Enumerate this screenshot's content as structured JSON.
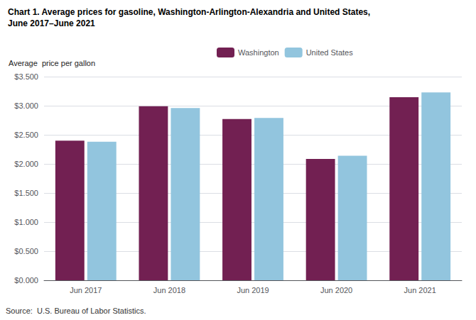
{
  "chart_data": {
    "type": "bar",
    "title": "Chart 1. Average prices for gasoline, Washington-Arlington-Alexandria and United States,",
    "subtitle": "June 2017–June 2021",
    "ylabel": "Average  price per gallon",
    "annotations": [
      "Source:  U.S. Bureau of Labor Statistics."
    ],
    "categories": [
      "Jun 2017",
      "Jun 2018",
      "Jun 2019",
      "Jun 2020",
      "Jun 2021"
    ],
    "series": [
      {
        "name": "Washington",
        "color": "#722052",
        "values": [
          2.4,
          2.99,
          2.77,
          2.085,
          3.145
        ]
      },
      {
        "name": "United States",
        "color": "#92C5DE",
        "values": [
          2.38,
          2.96,
          2.79,
          2.14,
          3.23
        ]
      }
    ],
    "ylim": [
      0,
      3.5
    ],
    "yticks": [
      {
        "value": 0.0,
        "label": "$0.000"
      },
      {
        "value": 0.5,
        "label": "$0.500"
      },
      {
        "value": 1.0,
        "label": "$1.000"
      },
      {
        "value": 1.5,
        "label": "$1.500"
      },
      {
        "value": 2.0,
        "label": "$2.000"
      },
      {
        "value": 2.5,
        "label": "$2.500"
      },
      {
        "value": 3.0,
        "label": "$3.000"
      },
      {
        "value": 3.5,
        "label": "$3.500"
      }
    ],
    "grid": true,
    "legend": "top"
  }
}
